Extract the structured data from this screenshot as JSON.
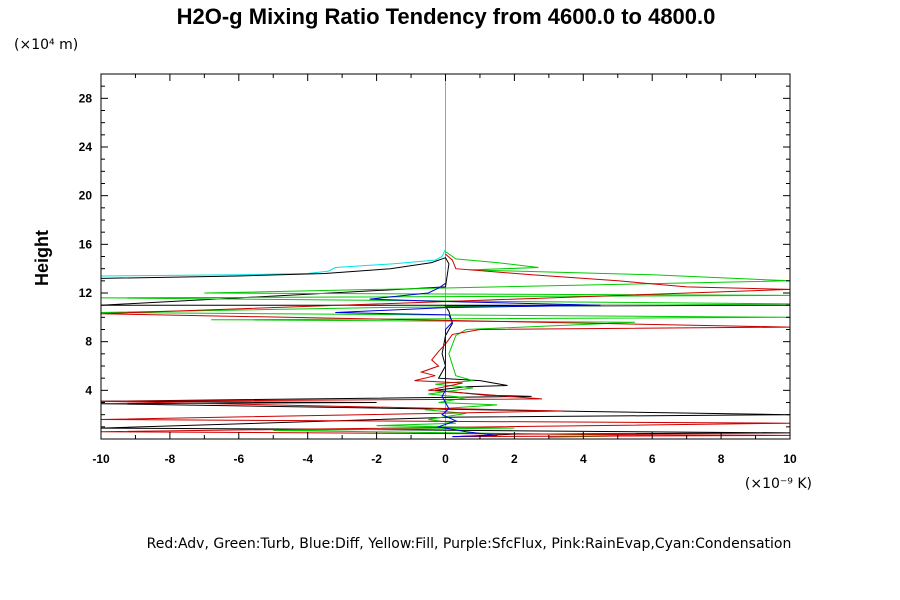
{
  "chart_data": {
    "type": "line",
    "title": "H2O-g Mixing Ratio Tendency from 4600.0 to 4800.0",
    "ylabel": "Height",
    "xlabel": "",
    "x_unit": "(×10⁻⁹ K)",
    "y_unit": "(×10⁴ m)",
    "xlim": [
      -10,
      10
    ],
    "ylim": [
      0,
      30
    ],
    "x_ticks": [
      "-10",
      "-8",
      "-6",
      "-4",
      "-2",
      "0",
      "2",
      "4",
      "6",
      "8",
      "10"
    ],
    "y_ticks": [
      "4",
      "8",
      "12",
      "16",
      "20",
      "24",
      "28"
    ],
    "legend_text": "Red:Adv, Green:Turb, Blue:Diff, Yellow:Fill, Purple:SfcFlux, Pink:RainEvap,Cyan:Condensation",
    "grid": false,
    "series": [
      {
        "color": "#00e5e5",
        "points": [
          [
            -10,
            13.4
          ],
          [
            -6,
            13.5
          ],
          [
            -4,
            13.6
          ],
          [
            -3.4,
            13.8
          ],
          [
            -3.2,
            14.1
          ],
          [
            -1.5,
            14.4
          ],
          [
            -0.3,
            14.7
          ],
          [
            -0.1,
            15.0
          ],
          [
            0,
            15.6
          ],
          [
            0,
            16
          ],
          [
            0,
            30
          ],
          [
            0,
            16
          ],
          [
            0,
            12
          ],
          [
            0,
            8
          ],
          [
            0,
            4
          ],
          [
            0,
            0.5
          ]
        ]
      },
      {
        "color": "#000000",
        "points": [
          [
            -10,
            13.2
          ],
          [
            -6,
            13.4
          ],
          [
            -3.5,
            13.6
          ],
          [
            -1.6,
            14.0
          ],
          [
            -0.4,
            14.5
          ],
          [
            0,
            14.9
          ],
          [
            0.1,
            14.4
          ],
          [
            0,
            12.5
          ],
          [
            -10,
            11.0
          ],
          [
            10,
            11.0
          ],
          [
            0,
            10.9
          ],
          [
            0.1,
            10.5
          ],
          [
            0.2,
            9.5
          ],
          [
            0,
            8.5
          ],
          [
            -0.1,
            7
          ],
          [
            0,
            6
          ],
          [
            -0.2,
            5.0
          ],
          [
            1,
            4.8
          ],
          [
            1.8,
            4.4
          ],
          [
            0.6,
            4.3
          ],
          [
            -0.3,
            4.0
          ],
          [
            1.2,
            3.6
          ],
          [
            2.5,
            3.5
          ],
          [
            -10,
            3.1
          ],
          [
            -2,
            3.0
          ],
          [
            -10,
            2.9
          ],
          [
            10,
            2.0
          ],
          [
            0.3,
            1.8
          ],
          [
            -10,
            0.9
          ],
          [
            -3,
            0.8
          ],
          [
            1,
            0.7
          ],
          [
            10,
            0.5
          ],
          [
            2,
            0.4
          ],
          [
            0.3,
            0.2
          ]
        ]
      },
      {
        "color": "#00cc00",
        "points": [
          [
            0,
            15.4
          ],
          [
            0.3,
            14.8
          ],
          [
            1.5,
            14.5
          ],
          [
            2.7,
            14.1
          ],
          [
            0.7,
            13.9
          ],
          [
            6,
            13.5
          ],
          [
            10,
            13.0
          ],
          [
            -7,
            12.0
          ],
          [
            10,
            11.8
          ],
          [
            -10,
            11.6
          ],
          [
            10,
            11.1
          ],
          [
            -2,
            10.8
          ],
          [
            -10,
            10.4
          ],
          [
            10,
            10.0
          ],
          [
            -6.8,
            9.8
          ],
          [
            5.5,
            9.6
          ],
          [
            0.6,
            9.0
          ],
          [
            0.3,
            8.5
          ],
          [
            0.1,
            7
          ],
          [
            0.3,
            5.2
          ],
          [
            0.8,
            4.8
          ],
          [
            -0.3,
            4.5
          ],
          [
            0.8,
            4.2
          ],
          [
            -0.5,
            3.7
          ],
          [
            0.6,
            3.4
          ],
          [
            -0.2,
            3.0
          ],
          [
            1.5,
            2.8
          ],
          [
            -0.6,
            2.4
          ],
          [
            0.6,
            2.1
          ],
          [
            -0.5,
            1.6
          ],
          [
            0.3,
            1.3
          ],
          [
            -2,
            1.1
          ],
          [
            2,
            0.9
          ],
          [
            -5,
            0.7
          ],
          [
            0.4,
            0.5
          ],
          [
            6,
            0.3
          ],
          [
            3,
            0.15
          ]
        ]
      },
      {
        "color": "#cc0000",
        "points": [
          [
            0,
            15.2
          ],
          [
            0.2,
            14.7
          ],
          [
            0.3,
            14.0
          ],
          [
            2.5,
            13.5
          ],
          [
            5,
            13.0
          ],
          [
            7,
            12.5
          ],
          [
            10,
            12.3
          ],
          [
            -10,
            10.3
          ],
          [
            10,
            9.2
          ],
          [
            1,
            9.0
          ],
          [
            0.2,
            8.6
          ],
          [
            0,
            7.8
          ],
          [
            -0.2,
            7.2
          ],
          [
            -0.4,
            6.5
          ],
          [
            -0.2,
            6.0
          ],
          [
            -0.7,
            5.5
          ],
          [
            -0.3,
            5.2
          ],
          [
            -0.9,
            4.8
          ],
          [
            0.5,
            4.6
          ],
          [
            -0.5,
            4.0
          ],
          [
            2.8,
            3.3
          ],
          [
            -10,
            3.1
          ],
          [
            3.4,
            2.3
          ],
          [
            -10,
            1.6
          ],
          [
            10,
            1.3
          ],
          [
            -10,
            0.6
          ],
          [
            10,
            0.3
          ],
          [
            0.2,
            0.2
          ]
        ]
      },
      {
        "color": "#0000dd",
        "points": [
          [
            0,
            12.8
          ],
          [
            -0.2,
            12.4
          ],
          [
            -0.5,
            12.0
          ],
          [
            -2.2,
            11.5
          ],
          [
            0,
            11.3
          ],
          [
            4.5,
            11.0
          ],
          [
            0,
            10.8
          ],
          [
            -3.2,
            10.4
          ],
          [
            0.1,
            10.2
          ],
          [
            0.2,
            9.6
          ],
          [
            0,
            9.0
          ],
          [
            0,
            4
          ],
          [
            -0.1,
            3.5
          ],
          [
            0.1,
            2.5
          ],
          [
            -0.1,
            2.0
          ],
          [
            0.3,
            1.5
          ],
          [
            -0.2,
            1.0
          ],
          [
            0.6,
            0.6
          ],
          [
            1.5,
            0.3
          ],
          [
            0.2,
            0.2
          ]
        ]
      }
    ]
  }
}
